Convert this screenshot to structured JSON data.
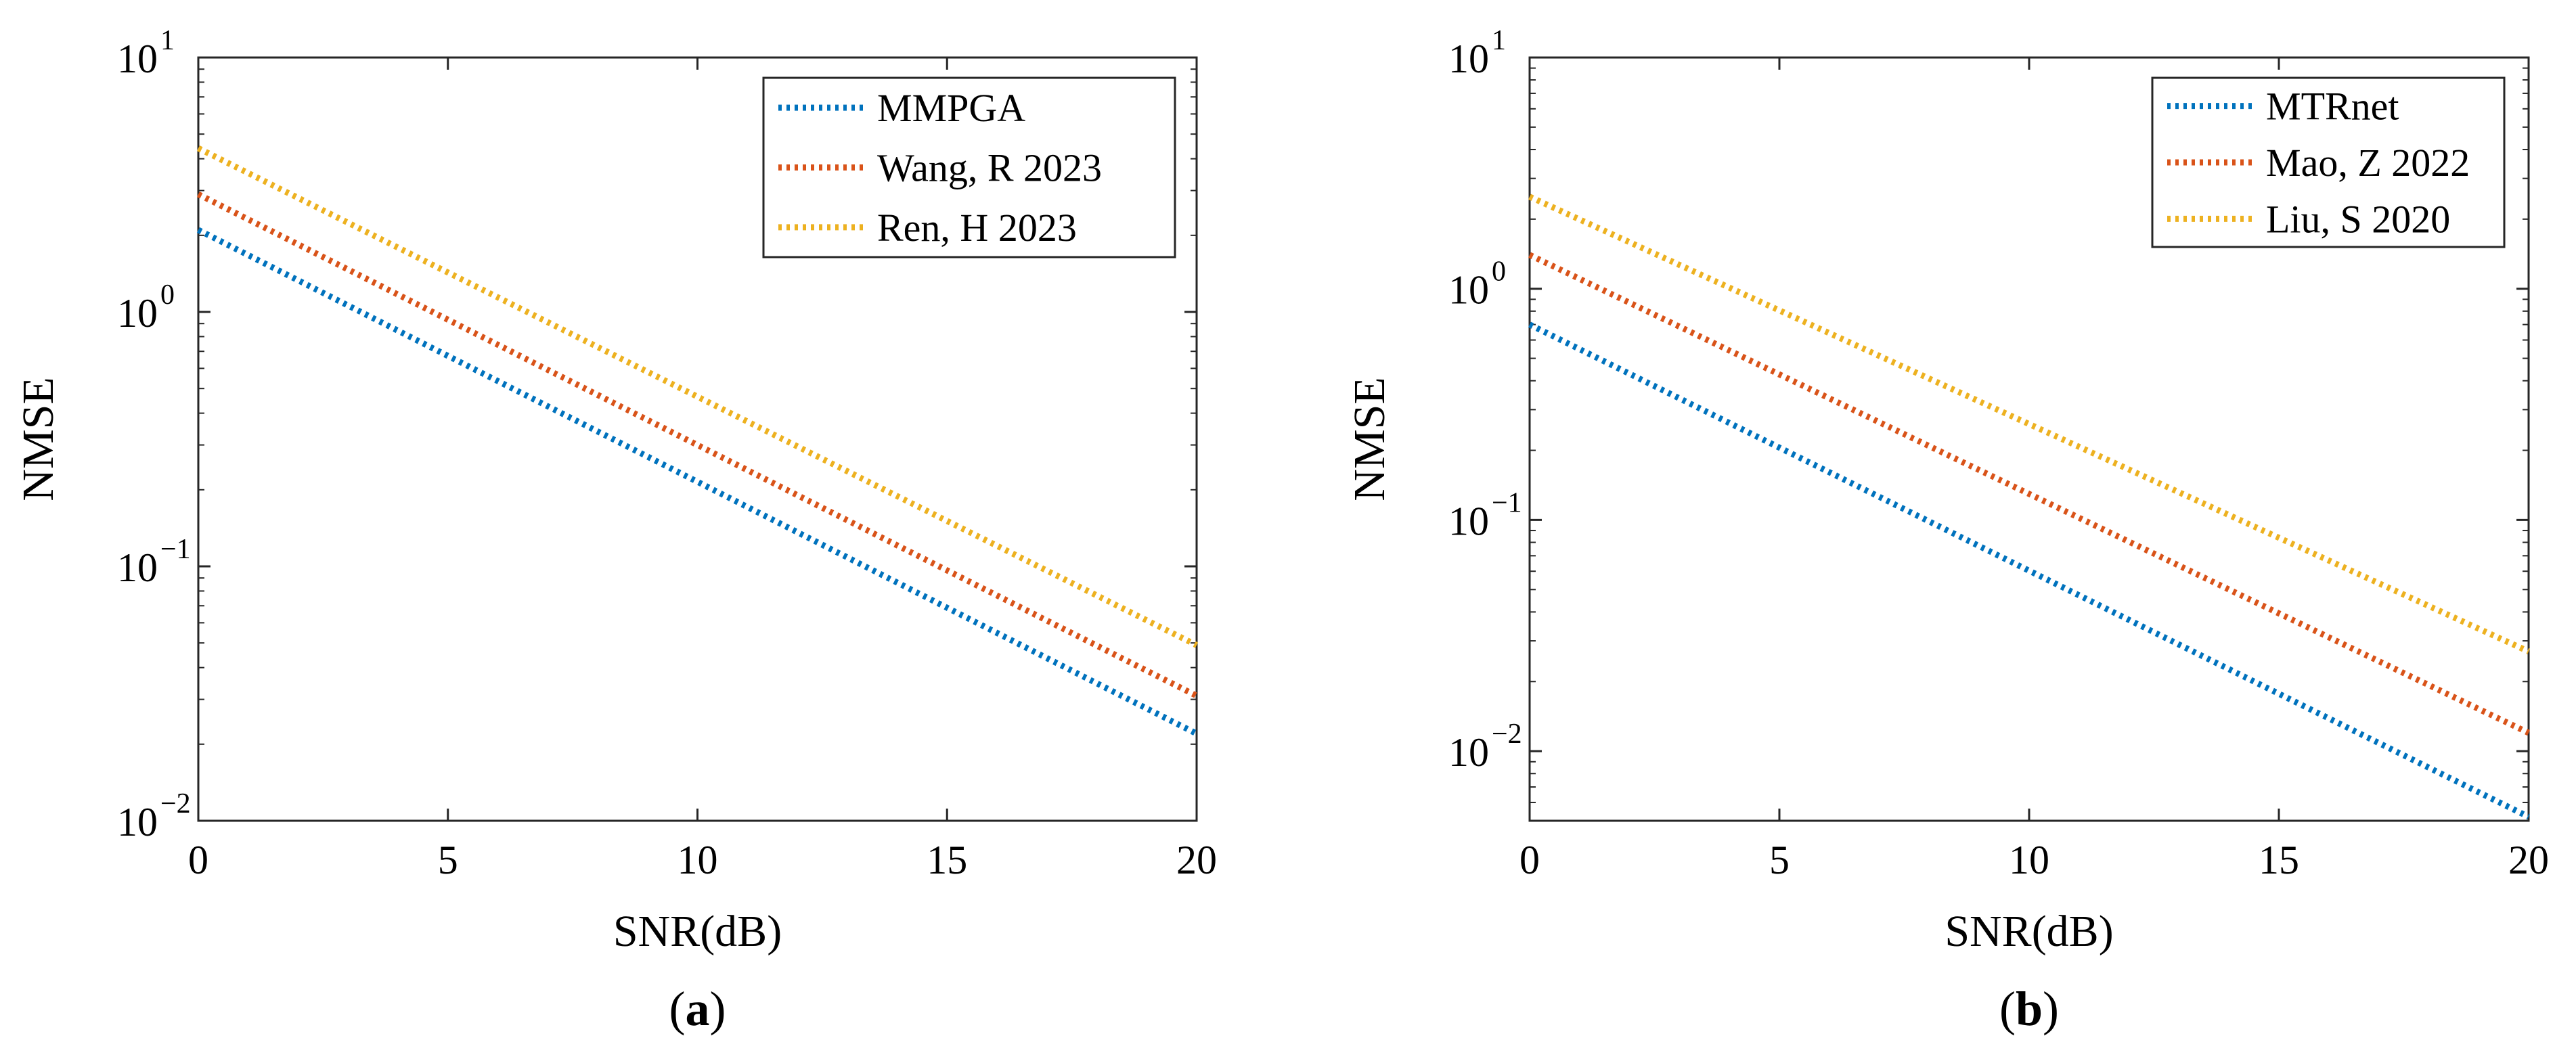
{
  "chart_data": [
    {
      "type": "line",
      "panel_label": "a",
      "xlabel": "SNR(dB)",
      "ylabel": "NMSE",
      "yscale": "log",
      "xlim": [
        0,
        20
      ],
      "ylim": [
        0.01,
        10
      ],
      "x_ticks": [
        {
          "value": 0,
          "label": "0"
        },
        {
          "value": 5,
          "label": "5"
        },
        {
          "value": 10,
          "label": "10"
        },
        {
          "value": 15,
          "label": "15"
        },
        {
          "value": 20,
          "label": "20"
        }
      ],
      "y_ticks": [
        {
          "value": 10,
          "base": "10",
          "exp": "1"
        },
        {
          "value": 1,
          "base": "10",
          "exp": "0"
        },
        {
          "value": 0.1,
          "base": "10",
          "exp": "−1"
        },
        {
          "value": 0.01,
          "base": "10",
          "exp": "−2"
        }
      ],
      "grid": false,
      "legend_position": "top-right",
      "series": [
        {
          "name": "MMPGA",
          "color": "#0072BD",
          "x": [
            0,
            20
          ],
          "y": [
            2.1,
            0.022
          ]
        },
        {
          "name": "Wang, R 2023",
          "color": "#D95319",
          "x": [
            0,
            20
          ],
          "y": [
            2.9,
            0.031
          ]
        },
        {
          "name": "Ren, H 2023",
          "color": "#EDB120",
          "x": [
            0,
            20
          ],
          "y": [
            4.4,
            0.049
          ]
        }
      ]
    },
    {
      "type": "line",
      "panel_label": "b",
      "xlabel": "SNR(dB)",
      "ylabel": "NMSE",
      "yscale": "log",
      "xlim": [
        0,
        20
      ],
      "ylim": [
        0.005,
        10
      ],
      "x_ticks": [
        {
          "value": 0,
          "label": "0"
        },
        {
          "value": 5,
          "label": "5"
        },
        {
          "value": 10,
          "label": "10"
        },
        {
          "value": 15,
          "label": "15"
        },
        {
          "value": 20,
          "label": "20"
        }
      ],
      "y_ticks": [
        {
          "value": 10,
          "base": "10",
          "exp": "1"
        },
        {
          "value": 1,
          "base": "10",
          "exp": "0"
        },
        {
          "value": 0.1,
          "base": "10",
          "exp": "−1"
        },
        {
          "value": 0.01,
          "base": "10",
          "exp": "−2"
        }
      ],
      "grid": false,
      "legend_position": "top-right",
      "series": [
        {
          "name": "MTRnet",
          "color": "#0072BD",
          "x": [
            0,
            20
          ],
          "y": [
            0.7,
            0.0052
          ]
        },
        {
          "name": "Mao, Z 2022",
          "color": "#D95319",
          "x": [
            0,
            20
          ],
          "y": [
            1.4,
            0.012
          ]
        },
        {
          "name": "Liu, S 2020",
          "color": "#EDB120",
          "x": [
            0,
            20
          ],
          "y": [
            2.5,
            0.027
          ]
        }
      ]
    }
  ]
}
